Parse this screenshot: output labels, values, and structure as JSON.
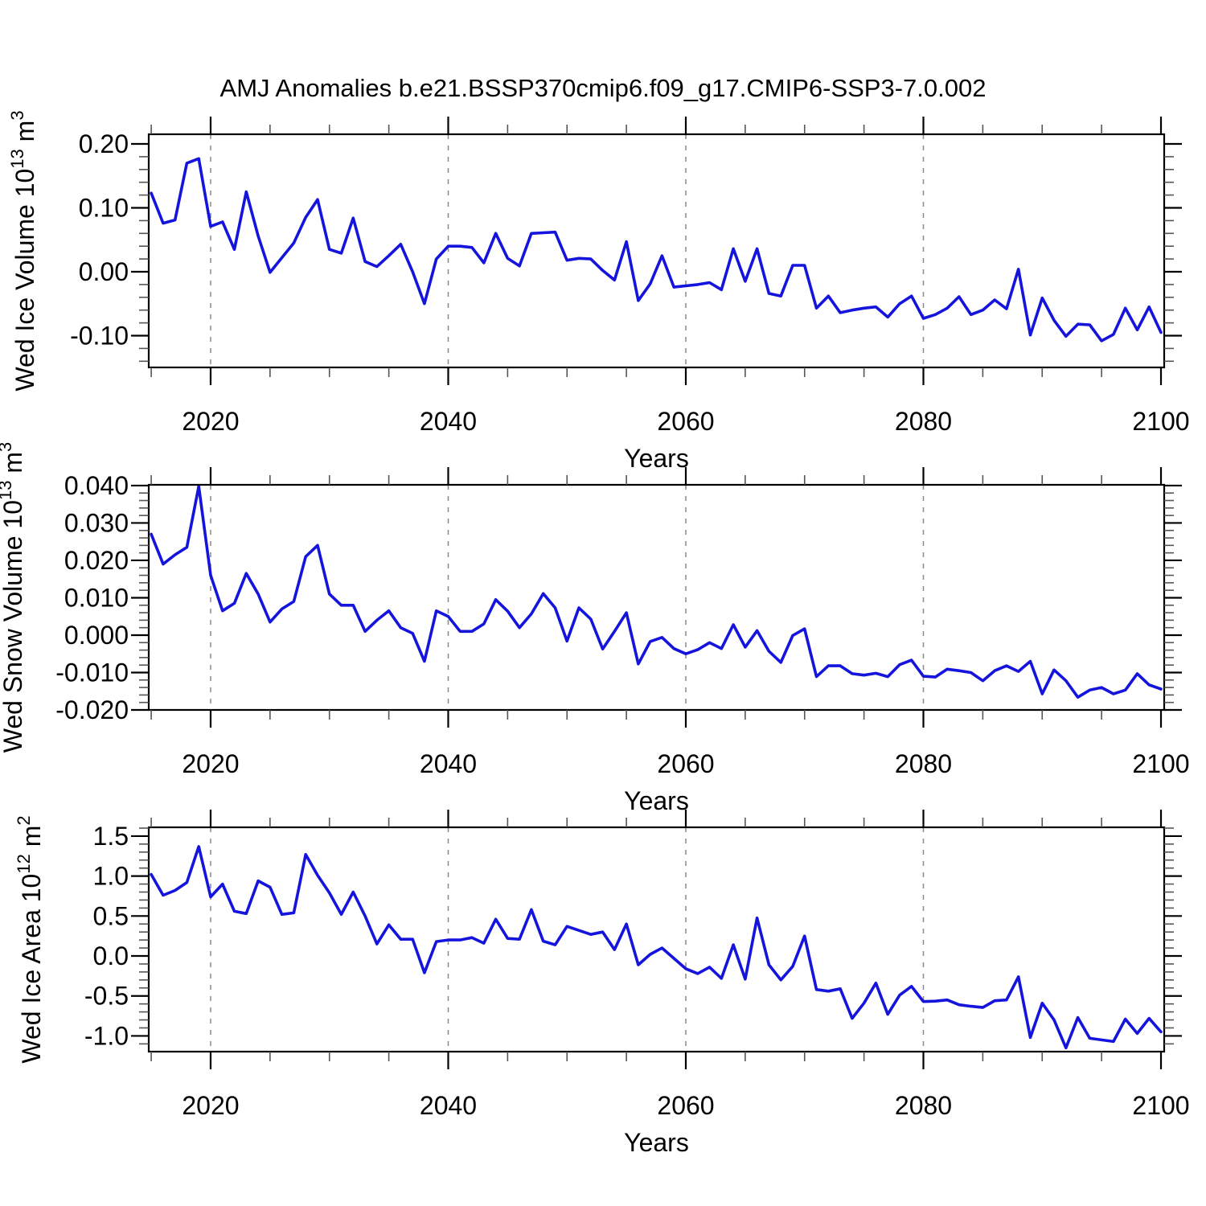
{
  "title": "AMJ Anomalies b.e21.BSSP370cmip6.f09_g17.CMIP6-SSP3-7.0.002",
  "colors": {
    "line": "#1414dd",
    "axis": "#000000",
    "minor_tick": "#555555",
    "grid": "#8a8a8a",
    "background": "#ffffff",
    "text": "#000000"
  },
  "x_axis": {
    "label": "Years",
    "start_year": 2015,
    "end_year": 2100,
    "xlim": [
      2014.79,
      2100.27
    ],
    "major_ticks": [
      2020,
      2040,
      2060,
      2080,
      2100
    ],
    "minor_tick_step": 5,
    "gridline_years": [
      2020,
      2040,
      2060,
      2080
    ],
    "grid_style": "dashed"
  },
  "chart_data": [
    {
      "type": "line",
      "series_name": "Wed Ice Volume",
      "ylabel": "Wed Ice Volume 10^13 m^3",
      "ylabel_segments": [
        {
          "t": "Wed Ice Volume 10"
        },
        {
          "t": "13",
          "sup": true
        },
        {
          "t": " m"
        },
        {
          "t": "3",
          "sup": true
        }
      ],
      "xlabel": "Years",
      "ylim": [
        -0.1497,
        0.2151
      ],
      "ytick_major_step": 0.1,
      "ytick_minor_step": 0.02,
      "ytick_decimals": 2,
      "x_start": 2015,
      "values": [
        0.123,
        0.076,
        0.081,
        0.17,
        0.177,
        0.071,
        0.078,
        0.035,
        0.125,
        0.056,
        -0.001,
        0.022,
        0.045,
        0.085,
        0.113,
        0.035,
        0.029,
        0.084,
        0.016,
        0.008,
        0.025,
        0.043,
        0.0,
        -0.05,
        0.02,
        0.04,
        0.04,
        0.038,
        0.014,
        0.06,
        0.021,
        0.009,
        0.06,
        0.061,
        0.062,
        0.018,
        0.021,
        0.02,
        0.002,
        -0.013,
        0.047,
        -0.045,
        -0.019,
        0.025,
        -0.024,
        -0.022,
        -0.02,
        -0.017,
        -0.028,
        0.036,
        -0.015,
        0.036,
        -0.034,
        -0.038,
        0.01,
        0.01,
        -0.057,
        -0.038,
        -0.064,
        -0.06,
        -0.057,
        -0.055,
        -0.071,
        -0.05,
        -0.038,
        -0.073,
        -0.067,
        -0.057,
        -0.039,
        -0.067,
        -0.06,
        -0.044,
        -0.058,
        0.004,
        -0.099,
        -0.041,
        -0.076,
        -0.101,
        -0.082,
        -0.083,
        -0.108,
        -0.098,
        -0.057,
        -0.091,
        -0.055,
        -0.095
      ]
    },
    {
      "type": "line",
      "series_name": "Wed Snow Volume",
      "ylabel": "Wed Snow Volume 10^13 m^3",
      "ylabel_segments": [
        {
          "t": "Wed Snow Volume 10"
        },
        {
          "t": "13",
          "sup": true
        },
        {
          "t": " m"
        },
        {
          "t": "3",
          "sup": true
        }
      ],
      "xlabel": "Years",
      "ylim": [
        -0.02,
        0.0402
      ],
      "ytick_major_step": 0.01,
      "ytick_minor_step": 0.002,
      "ytick_decimals": 3,
      "x_start": 2015,
      "values": [
        0.027,
        0.019,
        0.0215,
        0.0235,
        0.0398,
        0.016,
        0.0065,
        0.0085,
        0.0165,
        0.011,
        0.0035,
        0.007,
        0.009,
        0.021,
        0.024,
        0.011,
        0.008,
        0.008,
        0.001,
        0.004,
        0.0065,
        0.002,
        0.0005,
        -0.007,
        0.0065,
        0.005,
        0.001,
        0.001,
        0.003,
        0.0095,
        0.0064,
        0.002,
        0.0057,
        0.0111,
        0.0073,
        -0.0016,
        0.0073,
        0.0043,
        -0.0037,
        0.001,
        0.006,
        -0.0077,
        -0.0017,
        -0.0006,
        -0.0036,
        -0.005,
        -0.0039,
        -0.002,
        -0.0036,
        0.0028,
        -0.0032,
        0.0012,
        -0.0043,
        -0.0073,
        -0.0001,
        0.0017,
        -0.0111,
        -0.0082,
        -0.0082,
        -0.0103,
        -0.0107,
        -0.0102,
        -0.0111,
        -0.0079,
        -0.0067,
        -0.011,
        -0.0112,
        -0.0091,
        -0.0095,
        -0.01,
        -0.0122,
        -0.0095,
        -0.0082,
        -0.0097,
        -0.007,
        -0.0157,
        -0.0093,
        -0.0122,
        -0.0166,
        -0.0147,
        -0.014,
        -0.0157,
        -0.0147,
        -0.0103,
        -0.0133,
        -0.0144
      ]
    },
    {
      "type": "line",
      "series_name": "Wed Ice Area",
      "ylabel": "Wed Ice Area 10^12 m^2",
      "ylabel_segments": [
        {
          "t": "Wed Ice Area 10"
        },
        {
          "t": "12",
          "sup": true
        },
        {
          "t": " m"
        },
        {
          "t": "2",
          "sup": true
        }
      ],
      "xlabel": "Years",
      "ylim": [
        -1.197,
        1.61
      ],
      "ytick_major_step": 0.5,
      "ytick_minor_step": 0.1,
      "ytick_decimals": 1,
      "x_start": 2015,
      "values": [
        1.02,
        0.76,
        0.82,
        0.92,
        1.37,
        0.74,
        0.9,
        0.56,
        0.53,
        0.94,
        0.86,
        0.52,
        0.54,
        1.27,
        1.01,
        0.79,
        0.52,
        0.8,
        0.5,
        0.15,
        0.39,
        0.21,
        0.21,
        -0.21,
        0.18,
        0.2,
        0.2,
        0.23,
        0.16,
        0.46,
        0.22,
        0.21,
        0.58,
        0.185,
        0.14,
        0.37,
        0.32,
        0.27,
        0.3,
        0.08,
        0.4,
        -0.11,
        0.02,
        0.1,
        -0.03,
        -0.16,
        -0.22,
        -0.14,
        -0.28,
        0.14,
        -0.29,
        0.475,
        -0.11,
        -0.3,
        -0.13,
        0.25,
        -0.42,
        -0.44,
        -0.41,
        -0.78,
        -0.59,
        -0.34,
        -0.73,
        -0.49,
        -0.38,
        -0.57,
        -0.565,
        -0.55,
        -0.61,
        -0.63,
        -0.645,
        -0.56,
        -0.55,
        -0.26,
        -1.02,
        -0.59,
        -0.8,
        -1.15,
        -0.77,
        -1.03,
        -1.05,
        -1.07,
        -0.79,
        -0.97,
        -0.78,
        -0.95
      ]
    }
  ]
}
